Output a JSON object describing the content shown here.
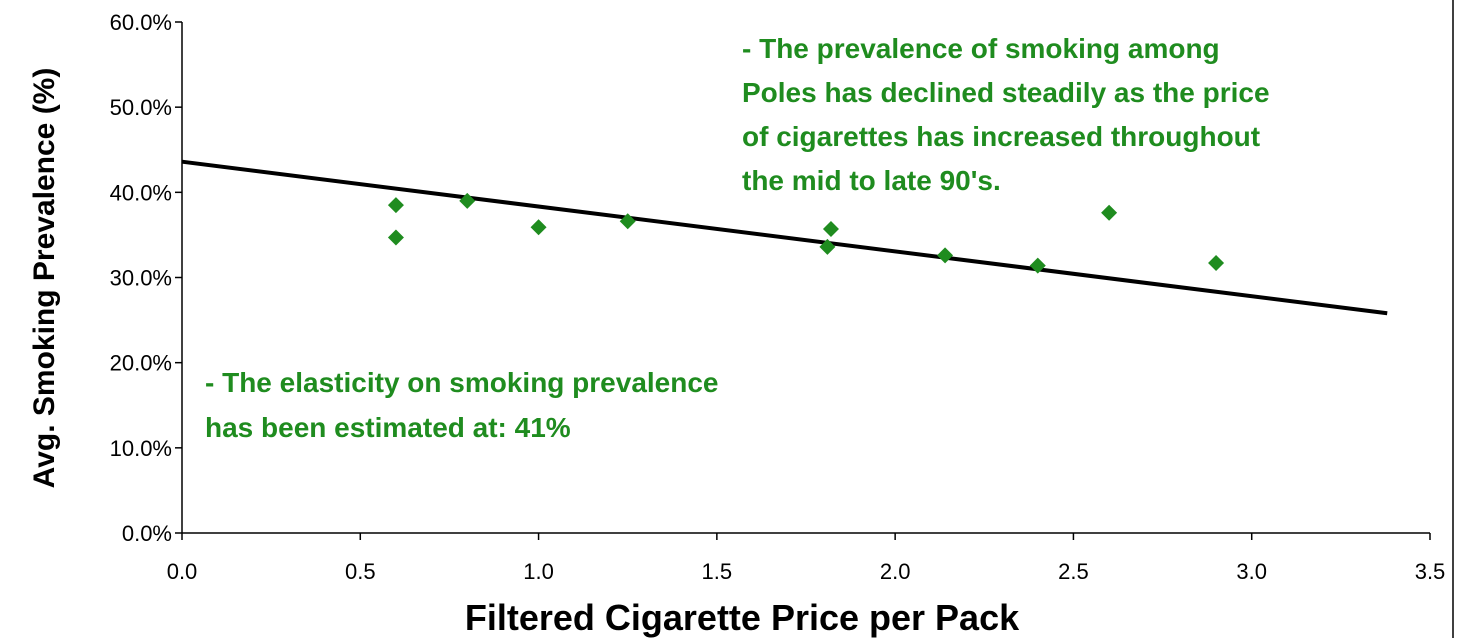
{
  "colors": {
    "points": "#1f8c1f",
    "trendline": "#000000",
    "annotation_text": "#1f8c1f",
    "axis": "#000000",
    "frame": "#000000"
  },
  "chart_data": {
    "type": "scatter",
    "title": "",
    "xlabel": "Filtered Cigarette Price per Pack",
    "ylabel": "Avg. Smoking Prevalence (%)",
    "xlim": [
      0,
      3.5
    ],
    "ylim": [
      0,
      60
    ],
    "x_ticks": [
      0,
      0.5,
      1.0,
      1.5,
      2.0,
      2.5,
      3.0,
      3.5
    ],
    "x_tick_labels": [
      "0.0",
      "0.5",
      "1.0",
      "1.5",
      "2.0",
      "2.5",
      "3.0",
      "3.5"
    ],
    "y_ticks": [
      0,
      10,
      20,
      30,
      40,
      50,
      60
    ],
    "y_tick_labels": [
      "0.0%",
      "10.0%",
      "20.0%",
      "30.0%",
      "40.0%",
      "50.0%",
      "60.0%"
    ],
    "grid": false,
    "legend": "none",
    "marker": "diamond",
    "points": [
      {
        "x": 0.6,
        "y": 38.5
      },
      {
        "x": 0.6,
        "y": 34.7
      },
      {
        "x": 0.8,
        "y": 39.0
      },
      {
        "x": 1.0,
        "y": 35.9
      },
      {
        "x": 1.25,
        "y": 36.6
      },
      {
        "x": 1.82,
        "y": 35.7
      },
      {
        "x": 1.81,
        "y": 33.6
      },
      {
        "x": 2.14,
        "y": 32.6
      },
      {
        "x": 2.4,
        "y": 31.4
      },
      {
        "x": 2.6,
        "y": 37.6
      },
      {
        "x": 2.9,
        "y": 31.7
      }
    ],
    "trendline": {
      "type": "linear",
      "x": [
        0.0,
        3.38
      ],
      "y": [
        43.6,
        25.8
      ]
    },
    "annotations": [
      {
        "lines": [
          "- The prevalence of smoking among",
          "Poles has declined steadily as the price",
          "of cigarettes has increased throughout",
          "the mid to late 90's."
        ]
      },
      {
        "lines": [
          "-  The elasticity on smoking prevalence",
          "has been estimated at: 41%"
        ]
      }
    ]
  }
}
